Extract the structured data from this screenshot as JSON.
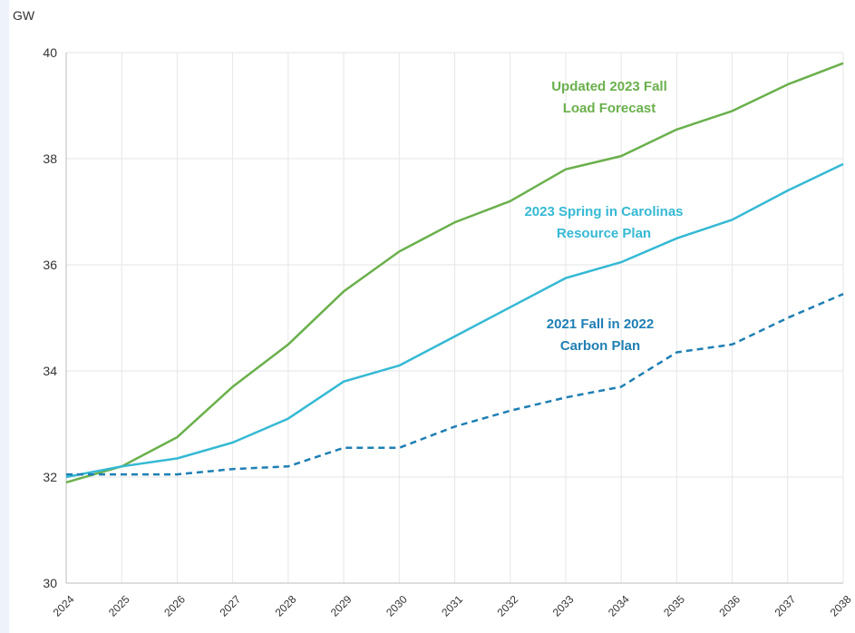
{
  "chart_data": {
    "type": "line",
    "ylabel": "GW",
    "ylim": [
      30,
      40
    ],
    "yticks": [
      "30",
      "32",
      "34",
      "36",
      "38",
      "40"
    ],
    "grid": true,
    "x": [
      "2024",
      "2025",
      "2026",
      "2027",
      "2028",
      "2029",
      "2030",
      "2031",
      "2032",
      "2033",
      "2034",
      "2035",
      "2036",
      "2037",
      "2038"
    ],
    "series": [
      {
        "name": "Updated 2023 Fall Load Forecast",
        "label_lines": [
          "Updated 2023 Fall",
          "Load Forecast"
        ],
        "color": "#6ab04c",
        "style": "solid",
        "values": [
          31.9,
          32.2,
          32.75,
          33.7,
          34.5,
          35.5,
          36.25,
          36.8,
          37.2,
          37.8,
          38.05,
          38.55,
          38.9,
          39.4,
          39.8
        ]
      },
      {
        "name": "2023 Spring in Carolinas Resource Plan",
        "label_lines": [
          "2023 Spring  in  Carolinas",
          "Resource Plan"
        ],
        "color": "#35b9d4",
        "style": "solid",
        "values": [
          32.0,
          32.2,
          32.35,
          32.65,
          33.1,
          33.8,
          34.1,
          34.65,
          35.2,
          35.75,
          36.05,
          36.5,
          36.85,
          37.4,
          37.9
        ]
      },
      {
        "name": "2021 Fall in 2022 Carbon Plan",
        "label_lines": [
          "2021 Fall in 2022",
          "Carbon Plan"
        ],
        "color": "#1f7fb4",
        "style": "dashed",
        "values": [
          32.05,
          32.05,
          32.05,
          32.15,
          32.2,
          32.55,
          32.55,
          32.95,
          33.25,
          33.5,
          33.7,
          34.35,
          34.5,
          35.0,
          35.45
        ]
      }
    ]
  }
}
